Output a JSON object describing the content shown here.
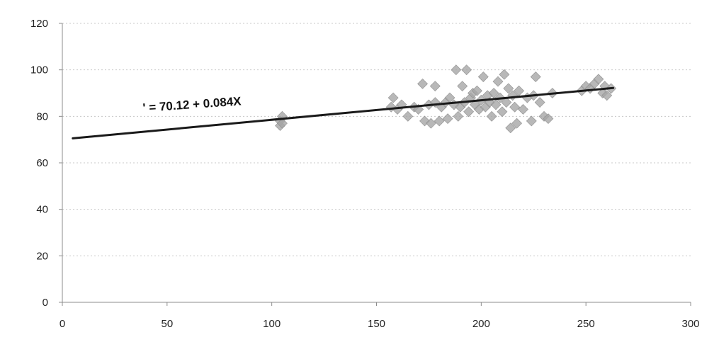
{
  "chart_data": {
    "type": "scatter",
    "title": "",
    "xlabel": "",
    "ylabel": "",
    "xlim": [
      0,
      300
    ],
    "ylim": [
      0,
      120
    ],
    "xticks": [
      0,
      50,
      100,
      150,
      200,
      250,
      300
    ],
    "yticks": [
      0,
      20,
      40,
      60,
      80,
      100,
      120
    ],
    "grid": "horizontal dashed",
    "legend": "none",
    "series": [
      {
        "color": "#a6a6a6",
        "marker": "diamond",
        "points": [
          [
            104,
            76
          ],
          [
            104,
            78
          ],
          [
            105,
            80
          ],
          [
            105,
            77
          ],
          [
            157,
            84
          ],
          [
            158,
            88
          ],
          [
            160,
            83
          ],
          [
            162,
            85
          ],
          [
            165,
            80
          ],
          [
            168,
            84
          ],
          [
            170,
            83
          ],
          [
            172,
            94
          ],
          [
            173,
            78
          ],
          [
            175,
            85
          ],
          [
            176,
            77
          ],
          [
            178,
            93
          ],
          [
            178,
            86
          ],
          [
            180,
            78
          ],
          [
            181,
            84
          ],
          [
            183,
            86
          ],
          [
            184,
            79
          ],
          [
            185,
            88
          ],
          [
            187,
            85
          ],
          [
            188,
            100
          ],
          [
            189,
            80
          ],
          [
            190,
            84
          ],
          [
            191,
            93
          ],
          [
            192,
            86
          ],
          [
            193,
            100
          ],
          [
            194,
            82
          ],
          [
            195,
            88
          ],
          [
            196,
            90
          ],
          [
            197,
            85
          ],
          [
            198,
            91
          ],
          [
            199,
            83
          ],
          [
            200,
            87
          ],
          [
            201,
            97
          ],
          [
            202,
            84
          ],
          [
            203,
            89
          ],
          [
            204,
            86
          ],
          [
            205,
            80
          ],
          [
            206,
            90
          ],
          [
            207,
            85
          ],
          [
            208,
            95
          ],
          [
            209,
            88
          ],
          [
            210,
            82
          ],
          [
            211,
            98
          ],
          [
            212,
            86
          ],
          [
            213,
            92
          ],
          [
            214,
            75
          ],
          [
            215,
            89
          ],
          [
            216,
            84
          ],
          [
            217,
            77
          ],
          [
            218,
            91
          ],
          [
            220,
            83
          ],
          [
            222,
            88
          ],
          [
            224,
            78
          ],
          [
            225,
            89
          ],
          [
            226,
            97
          ],
          [
            228,
            86
          ],
          [
            230,
            80
          ],
          [
            232,
            79
          ],
          [
            234,
            90
          ],
          [
            248,
            91
          ],
          [
            250,
            93
          ],
          [
            252,
            92
          ],
          [
            254,
            94
          ],
          [
            256,
            96
          ],
          [
            258,
            90
          ],
          [
            259,
            93
          ],
          [
            260,
            89
          ],
          [
            262,
            92
          ]
        ]
      }
    ],
    "trendline": {
      "intercept": 70.12,
      "slope": 0.084,
      "x_from": 5,
      "x_to": 263,
      "color": "#1a1a1a",
      "label": "' = 70.12 + 0.084X"
    }
  }
}
